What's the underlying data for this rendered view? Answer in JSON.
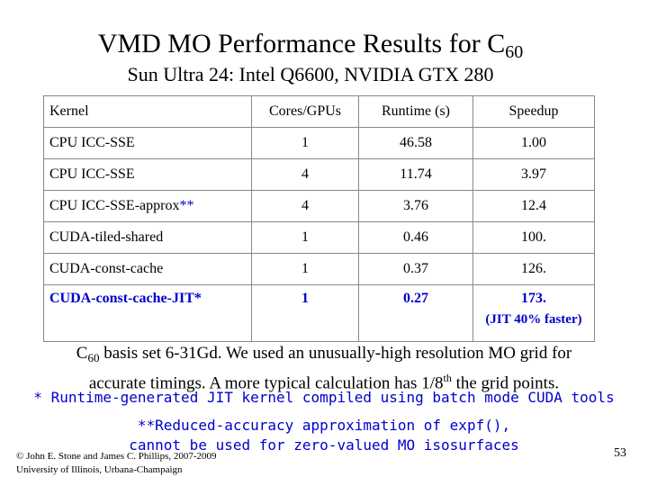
{
  "title": {
    "main": "VMD MO Performance Results for C",
    "sub": "60"
  },
  "subtitle": "Sun Ultra 24: Intel Q6600, NVIDIA GTX 280",
  "table": {
    "headers": {
      "kernel": "Kernel",
      "cores": "Cores/GPUs",
      "runtime": "Runtime (s)",
      "speedup": "Speedup"
    },
    "rows": [
      {
        "kernel": "CPU ICC-SSE",
        "cores": "1",
        "runtime": "46.58",
        "speedup": "1.00"
      },
      {
        "kernel": "CPU ICC-SSE",
        "cores": "4",
        "runtime": "11.74",
        "speedup": "3.97"
      },
      {
        "kernel": "CPU ICC-SSE-approx",
        "kernel_mark": "**",
        "cores": "4",
        "runtime": "3.76",
        "speedup": "12.4"
      },
      {
        "kernel": "CUDA-tiled-shared",
        "cores": "1",
        "runtime": "0.46",
        "speedup": "100."
      },
      {
        "kernel": "CUDA-const-cache",
        "cores": "1",
        "runtime": "0.37",
        "speedup": "126."
      },
      {
        "kernel": "CUDA-const-cache-JIT*",
        "cores": "1",
        "runtime": "0.27",
        "speedup": "173.",
        "note": "(JIT 40% faster)"
      }
    ]
  },
  "body": {
    "c": "C",
    "c_sub": "60",
    "line1_rest": " basis set 6-31Gd.  We used an unusually-high resolution MO grid for",
    "line2_a": "accurate timings.  A more typical calculation has 1/8",
    "line2_sup": "th",
    "line2_b": " the grid points."
  },
  "jit_note": "* Runtime-generated JIT kernel compiled using batch mode CUDA tools",
  "approx_note": {
    "line1": "**Reduced-accuracy approximation of expf(),",
    "line2": "cannot be used for zero-valued MO isosurfaces"
  },
  "footer": {
    "line1": "© John E. Stone and James C. Phillips, 2007-2009",
    "line2": "University of Illinois, Urbana-Champaign"
  },
  "page_number": "53",
  "colors": {
    "accent": "#0000cc"
  }
}
